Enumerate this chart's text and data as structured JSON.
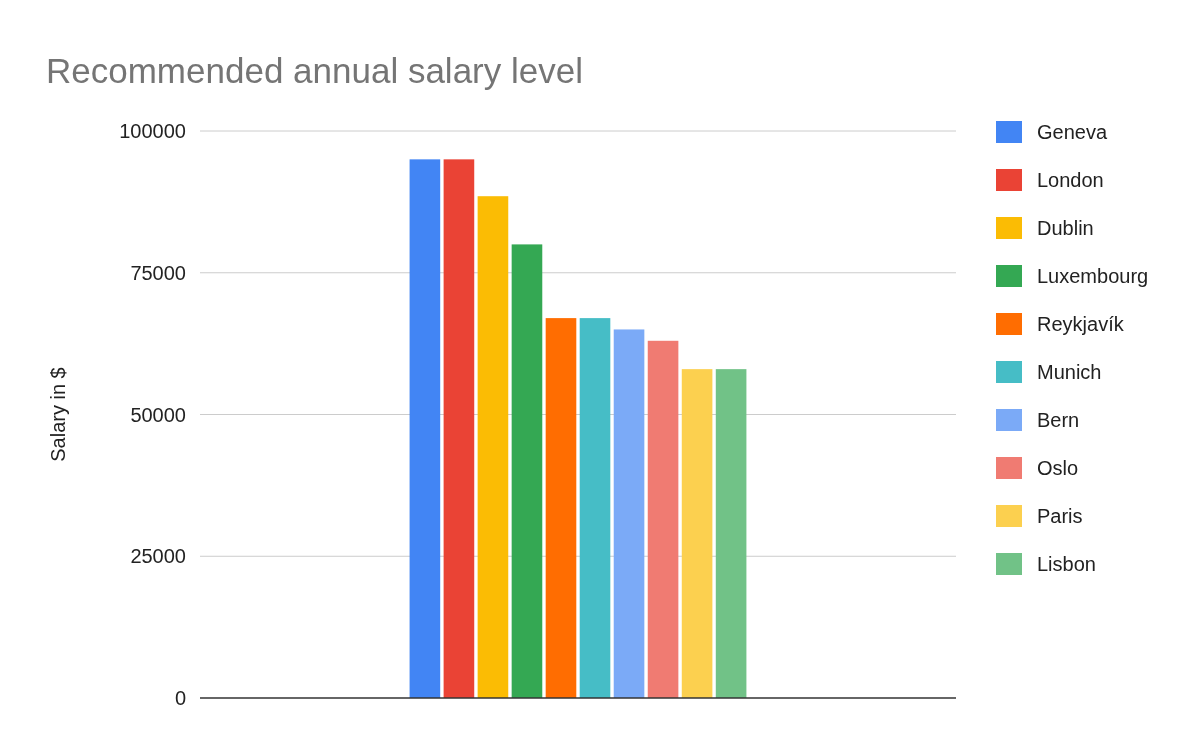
{
  "chart_data": {
    "type": "bar",
    "title": "Recommended annual salary level",
    "ylabel": "Salary in $",
    "categories": [
      null
    ],
    "series": [
      {
        "name": "Geneva",
        "color": "#4285f4",
        "values": [
          95000
        ]
      },
      {
        "name": "London",
        "color": "#ea4335",
        "values": [
          95000
        ]
      },
      {
        "name": "Dublin",
        "color": "#fbbc04",
        "values": [
          88500
        ]
      },
      {
        "name": "Luxembourg",
        "color": "#34a853",
        "values": [
          80000
        ]
      },
      {
        "name": "Reykjavík",
        "color": "#ff6d01",
        "values": [
          67000
        ]
      },
      {
        "name": "Munich",
        "color": "#46bdc6",
        "values": [
          67000
        ]
      },
      {
        "name": "Bern",
        "color": "#7baaf7",
        "values": [
          65000
        ]
      },
      {
        "name": "Oslo",
        "color": "#f07b72",
        "values": [
          63000
        ]
      },
      {
        "name": "Paris",
        "color": "#fcd04f",
        "values": [
          58000
        ]
      },
      {
        "name": "Lisbon",
        "color": "#71c287",
        "values": [
          58000
        ]
      }
    ],
    "ylim": [
      0,
      100000
    ],
    "yticks": [
      0,
      25000,
      50000,
      75000,
      100000
    ],
    "grid": "y",
    "legend": "right"
  }
}
